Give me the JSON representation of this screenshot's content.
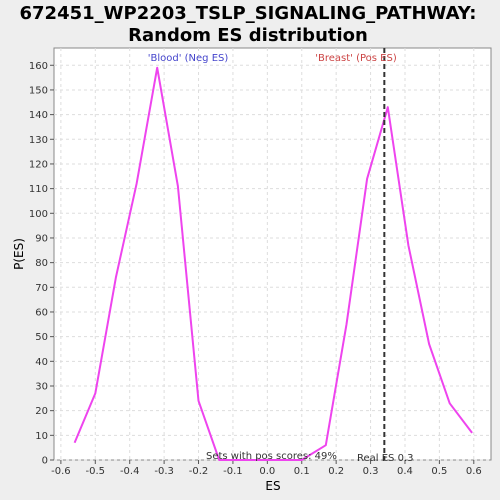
{
  "chart_data": {
    "type": "line",
    "title_line1": "672451_WP2203_TSLP_SIGNALING_PATHWAY:",
    "title_line2": "Random ES distribution",
    "xlabel": "ES",
    "ylabel": "P(ES)",
    "xlim": [
      -0.62,
      0.65
    ],
    "ylim": [
      0,
      167
    ],
    "xticks": [
      -0.6,
      -0.5,
      -0.4,
      -0.3,
      -0.2,
      -0.1,
      0.0,
      0.1,
      0.2,
      0.3,
      0.4,
      0.5,
      0.6
    ],
    "xtick_labels": [
      "-0.6",
      "-0.5",
      "-0.4",
      "-0.3",
      "-0.2",
      "-0.1",
      "0.0",
      "0.1",
      "0.2",
      "0.3",
      "0.4",
      "0.5",
      "0.6"
    ],
    "yticks": [
      0,
      10,
      20,
      30,
      40,
      50,
      60,
      70,
      80,
      90,
      100,
      110,
      120,
      130,
      140,
      150,
      160
    ],
    "ytick_labels": [
      "0",
      "10",
      "20",
      "30",
      "40",
      "50",
      "60",
      "70",
      "80",
      "90",
      "100",
      "110",
      "120",
      "130",
      "140",
      "150",
      "160"
    ],
    "grid": true,
    "line_color": "#ee44ee",
    "series": [
      {
        "x": [
          -0.56,
          -0.5,
          -0.44,
          -0.38,
          -0.32,
          -0.26,
          -0.2,
          -0.14,
          -0.08,
          -0.02,
          0.04,
          0.1,
          0.17,
          0.23,
          0.29,
          0.35,
          0.41,
          0.47,
          0.53,
          0.595
        ],
        "y": [
          7,
          27,
          74,
          112,
          159,
          111,
          24,
          0,
          0,
          0,
          0,
          0,
          6,
          55,
          114,
          143,
          87,
          47,
          23,
          11
        ]
      }
    ],
    "real_es": 0.34,
    "real_es_color": "#333333",
    "annotations": {
      "neg_label": "'Blood' (Neg ES)",
      "neg_color": "#4444cc",
      "pos_label": "'Breast' (Pos ES)",
      "pos_color": "#cc4444",
      "pos_scores": "Sets with pos scores: 49%",
      "real_es_label": "Real ES 0.3"
    }
  }
}
